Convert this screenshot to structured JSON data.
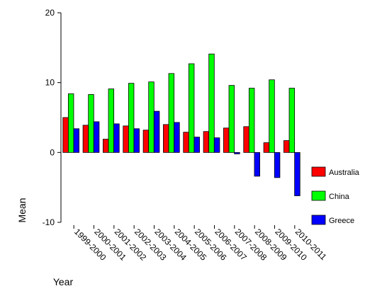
{
  "chart_data": {
    "type": "bar",
    "xlabel": "Year",
    "ylabel": "Mean",
    "ylim": [
      -10,
      20
    ],
    "yticks": [
      -10,
      0,
      10,
      20
    ],
    "grid": false,
    "legend_position": "right",
    "categories": [
      "1999-2000",
      "2000-2001",
      "2001-2002",
      "2002-2003",
      "2003-2004",
      "2004-2005",
      "2005-2006",
      "2006-2007",
      "2007-2008",
      "2008-2009",
      "2009-2010",
      "2010-2011"
    ],
    "series": [
      {
        "name": "Australia",
        "color": "#ff0000",
        "values": [
          5.0,
          3.9,
          1.9,
          3.8,
          3.2,
          4.0,
          2.9,
          3.0,
          3.5,
          3.7,
          1.4,
          1.7
        ]
      },
      {
        "name": "China",
        "color": "#00ff00",
        "values": [
          8.4,
          8.3,
          9.1,
          9.9,
          10.1,
          11.3,
          12.7,
          14.1,
          9.6,
          9.2,
          10.4,
          9.2
        ]
      },
      {
        "name": "Greece",
        "color": "#0000ff",
        "values": [
          3.4,
          4.4,
          4.1,
          3.4,
          5.9,
          4.3,
          2.2,
          2.1,
          -0.2,
          -3.4,
          -3.6,
          -6.2
        ]
      }
    ]
  }
}
